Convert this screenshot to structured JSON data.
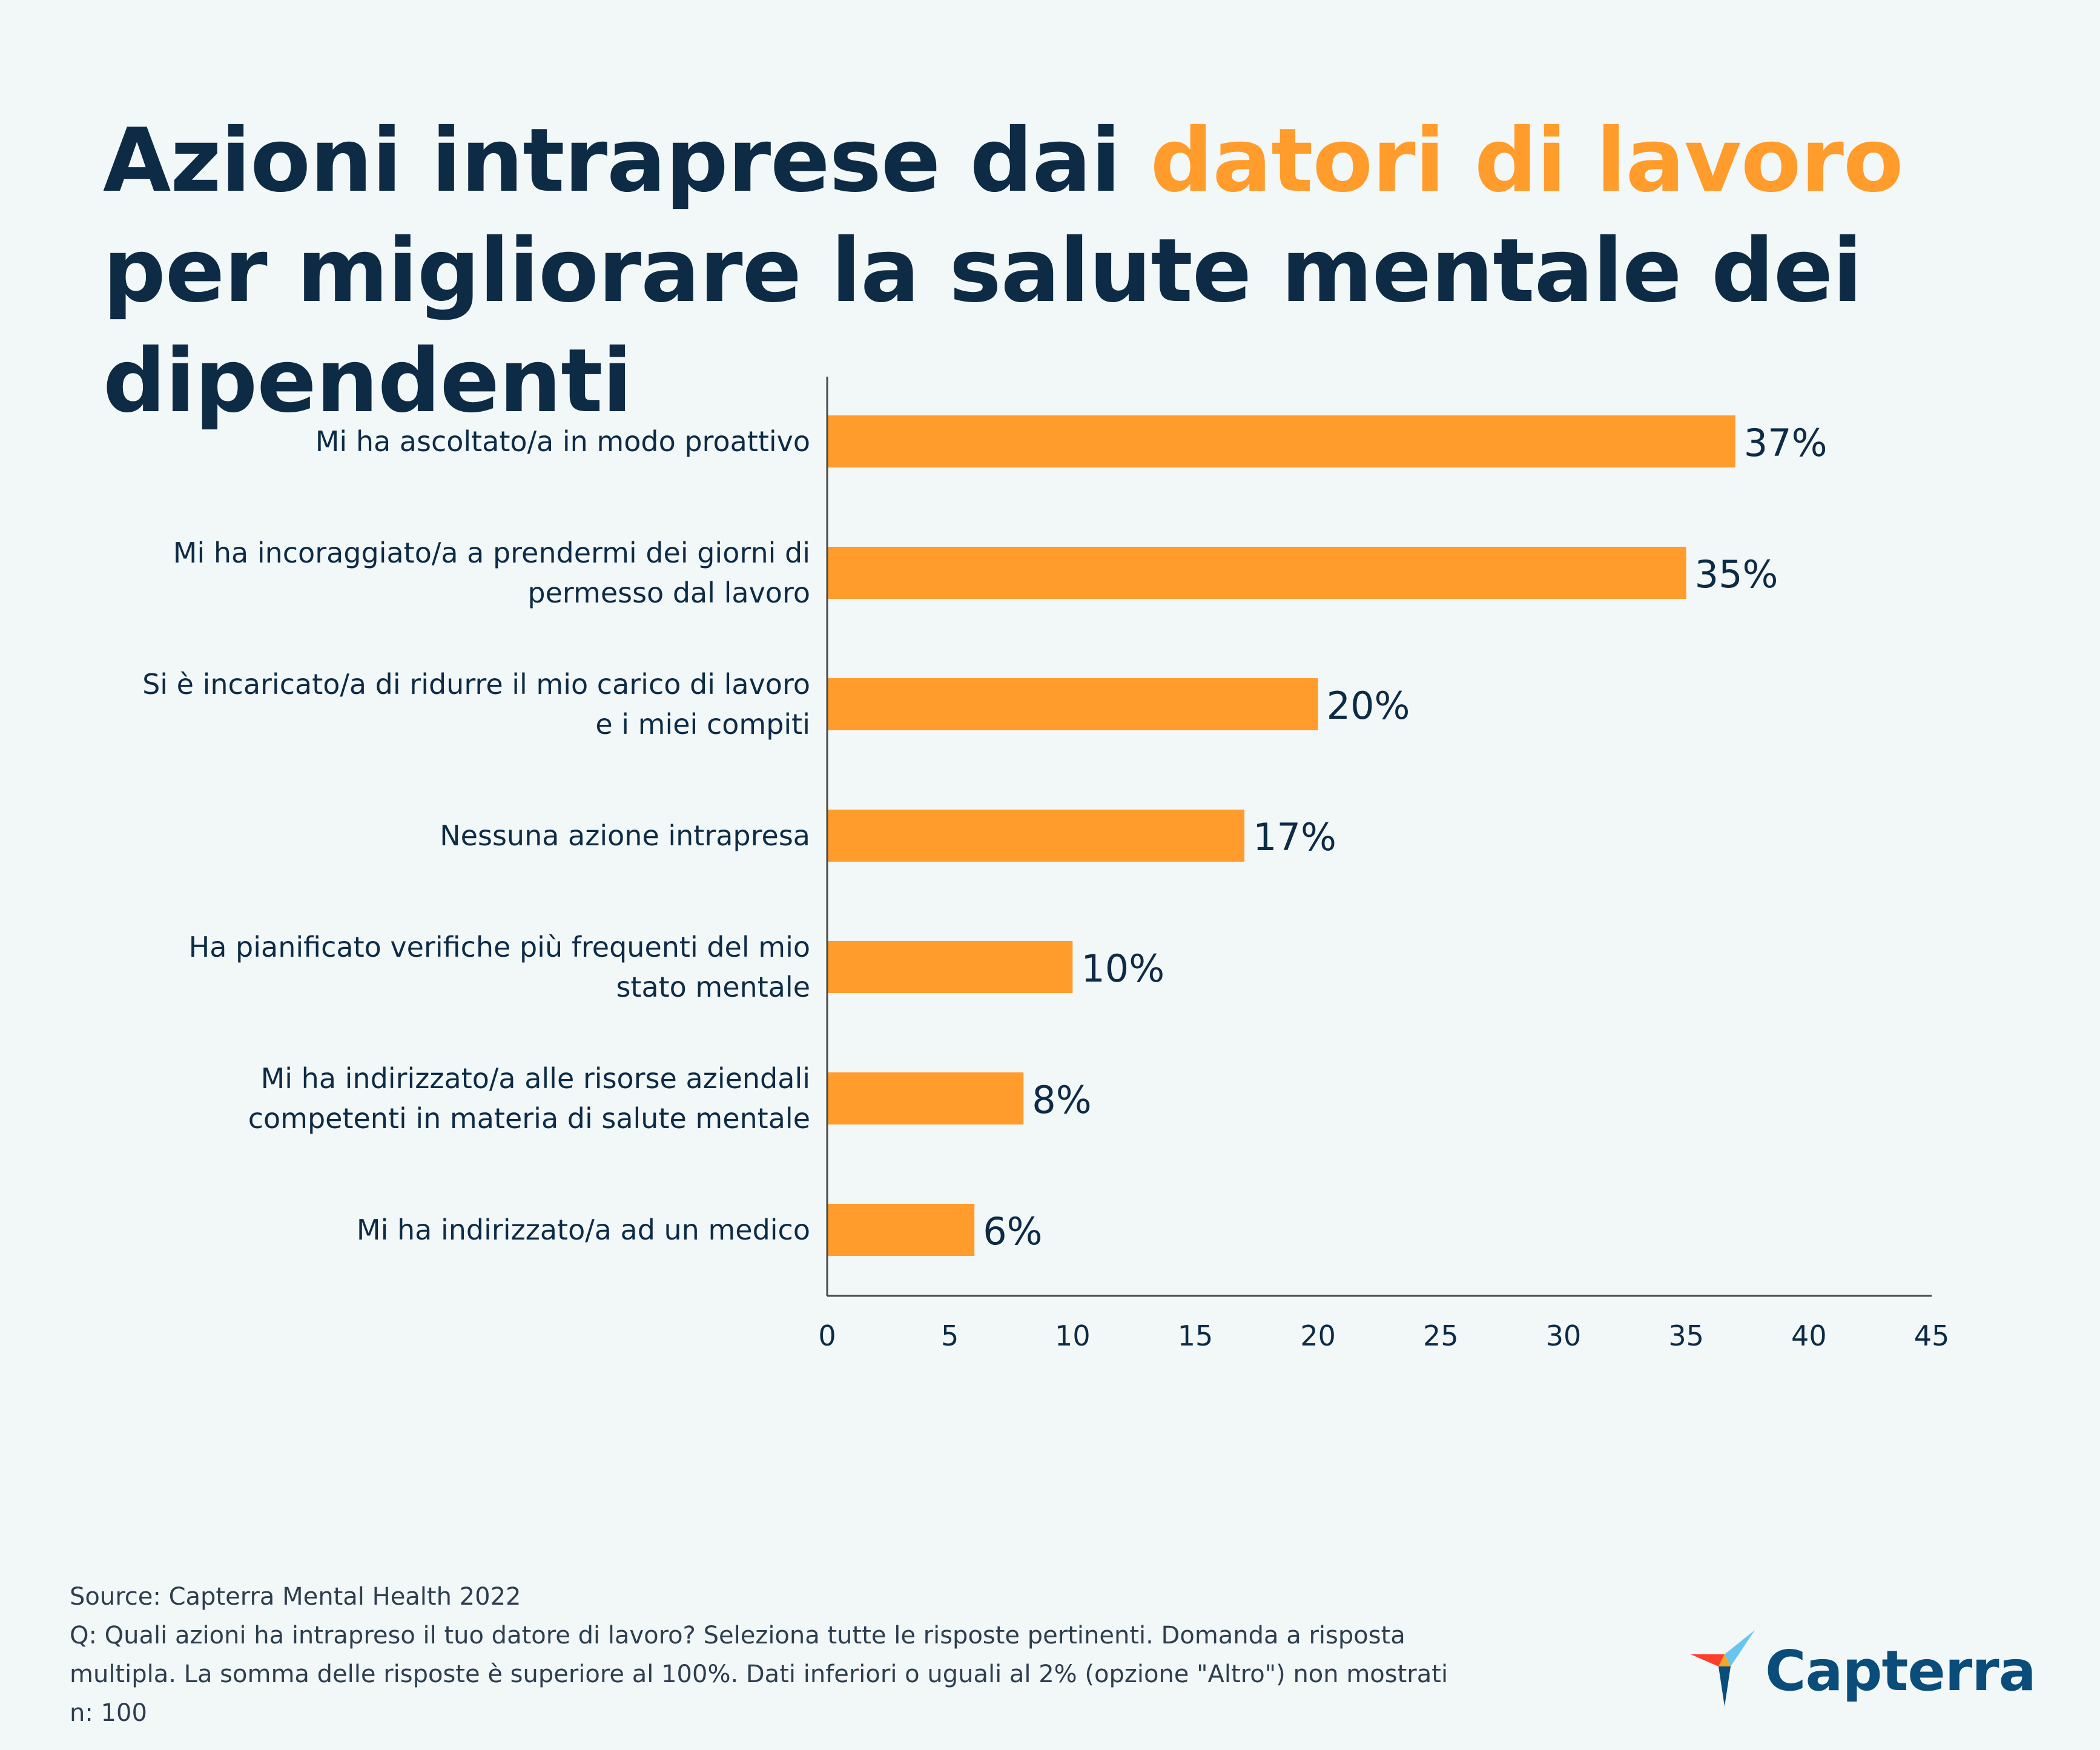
{
  "title": {
    "part1": "Azioni intraprese dai ",
    "highlight": "datori di lavoro",
    "part2": " per migliorare la salute mentale dei dipendenti"
  },
  "colors": {
    "bar": "#ff9c2b",
    "text": "#0d2b45",
    "background": "#f2f7f7",
    "accent": "#ff9c2b"
  },
  "chart_data": {
    "type": "bar",
    "orientation": "horizontal",
    "categories": [
      [
        "Mi ha ascoltato/a in modo proattivo"
      ],
      [
        "Mi ha incoraggiato/a a prendermi dei giorni di",
        "permesso dal lavoro"
      ],
      [
        "Si è incaricato/a di ridurre il mio carico di lavoro",
        "e i miei compiti"
      ],
      [
        "Nessuna azione intrapresa"
      ],
      [
        "Ha pianificato verifiche più frequenti del mio",
        "stato mentale"
      ],
      [
        "Mi ha indirizzato/a alle risorse aziendali ",
        "competenti in materia di salute mentale"
      ],
      [
        "Mi ha indirizzato/a ad un medico"
      ]
    ],
    "values": [
      37,
      35,
      20,
      17,
      10,
      8,
      6
    ],
    "value_labels": [
      "37%",
      "35%",
      "20%",
      "17%",
      "10%",
      "8%",
      "6%"
    ],
    "xlim": [
      0,
      45
    ],
    "xticks": [
      "0",
      "5",
      "10",
      "15",
      "20",
      "25",
      "30",
      "35",
      "40",
      "45"
    ],
    "grid": false
  },
  "footer": {
    "source": "Source: Capterra Mental Health 2022",
    "question_line1": "Q: Quali azioni ha intrapreso il tuo datore di lavoro? Seleziona tutte le risposte pertinenti. Domanda a risposta",
    "question_line2": "multipla. La somma delle risposte è superiore al 100%. Dati inferiori o uguali al 2% (opzione \"Altro\") non mostrati",
    "sample": "n: 100"
  },
  "logo": {
    "text": "Capterra",
    "icon": "capterra-arrow-icon"
  }
}
